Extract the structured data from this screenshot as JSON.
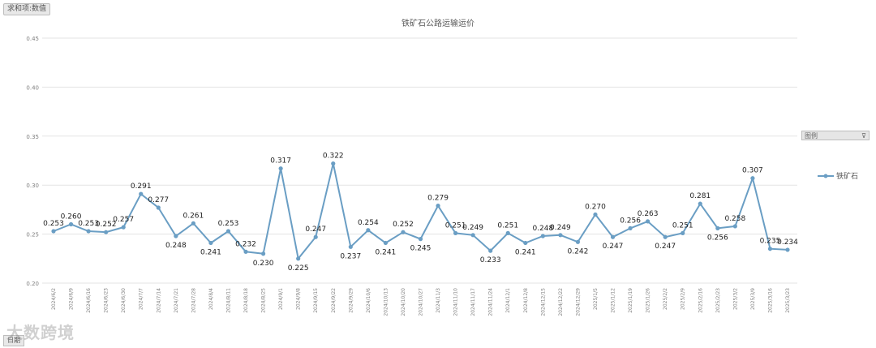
{
  "corner_tag": "求和项:数值",
  "field_tag": "日期",
  "legend_filter_label": "图例",
  "watermark": "大数跨境",
  "chart_data": {
    "type": "line",
    "title": "铁矿石公路运输运价",
    "xlabel": "",
    "ylabel": "",
    "ylim": [
      0.2,
      0.45
    ],
    "yticks": [
      "0.20",
      "0.25",
      "0.30",
      "0.35",
      "0.40",
      "0.45"
    ],
    "grid": true,
    "legend_position": "right",
    "line_color": "#6a9ec4",
    "categories": [
      "2024/6/2",
      "2024/6/9",
      "2024/6/16",
      "2024/6/23",
      "2024/6/30",
      "2024/7/7",
      "2024/7/14",
      "2024/7/21",
      "2024/7/28",
      "2024/8/4",
      "2024/8/11",
      "2024/8/18",
      "2024/8/25",
      "2024/9/1",
      "2024/9/8",
      "2024/9/15",
      "2024/9/22",
      "2024/9/29",
      "2024/10/6",
      "2024/10/13",
      "2024/10/20",
      "2024/10/27",
      "2024/11/3",
      "2024/11/10",
      "2024/11/17",
      "2024/11/24",
      "2024/12/1",
      "2024/12/8",
      "2024/12/15",
      "2024/12/22",
      "2024/12/29",
      "2025/1/5",
      "2025/1/12",
      "2025/1/19",
      "2025/1/26",
      "2025/2/2",
      "2025/2/9",
      "2025/2/16",
      "2025/2/23",
      "2025/3/2",
      "2025/3/9",
      "2025/3/16",
      "2025/3/23"
    ],
    "series": [
      {
        "name": "铁矿石",
        "values": [
          0.253,
          0.26,
          0.253,
          0.252,
          0.257,
          0.291,
          0.277,
          0.248,
          0.261,
          0.241,
          0.253,
          0.232,
          0.23,
          0.317,
          0.225,
          0.247,
          0.322,
          0.237,
          0.254,
          0.241,
          0.252,
          0.245,
          0.279,
          0.251,
          0.249,
          0.233,
          0.251,
          0.241,
          0.248,
          0.249,
          0.242,
          0.27,
          0.247,
          0.256,
          0.263,
          0.247,
          0.251,
          0.281,
          0.256,
          0.258,
          0.307,
          0.235,
          0.234
        ]
      }
    ]
  }
}
